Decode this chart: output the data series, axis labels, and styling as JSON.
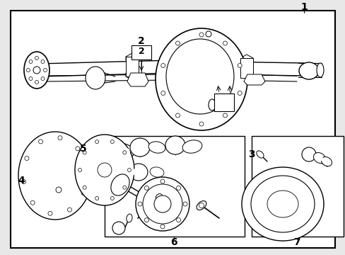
{
  "bg_color": "#e8e8e8",
  "fig_width": 4.89,
  "fig_height": 3.6,
  "dpi": 100,
  "font_size": 10,
  "lw_main": 1.0,
  "lw_light": 0.6,
  "lw_heavy": 1.5
}
